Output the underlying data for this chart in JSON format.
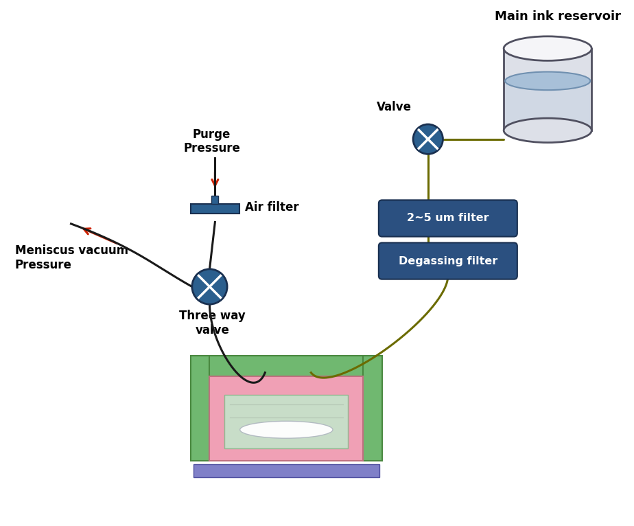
{
  "bg_color": "#ffffff",
  "valve_color": "#2b5f8e",
  "filter_box_color": "#2b5080",
  "filter_text_color": "#ffffff",
  "line_color_olive": "#6b6b00",
  "line_color_black": "#1a1a1a",
  "arrow_color": "#cc2200",
  "reservoir_label": "Main ink reservoir",
  "valve_label": "Valve",
  "filter1_label": "2~5 um filter",
  "filter2_label": "Degassing filter",
  "air_filter_label": "Air filter",
  "three_way_label": "Three way\nvalve",
  "purge_label": "Purge\nPressure",
  "meniscus_label": "Meniscus vacuum\nPressure",
  "ink_box_pink": "#f0a0b5",
  "ink_box_green": "#70b870",
  "ink_box_purple": "#8080c8",
  "ink_box_window_bg": "#c8ddc8",
  "ink_box_window_inner": "#e8f0e8",
  "reservoir_body": "#dde0e8",
  "reservoir_top": "#f5f5f8",
  "reservoir_water_top": "#a8c0d8",
  "reservoir_water_fill": "#d0d8e4"
}
